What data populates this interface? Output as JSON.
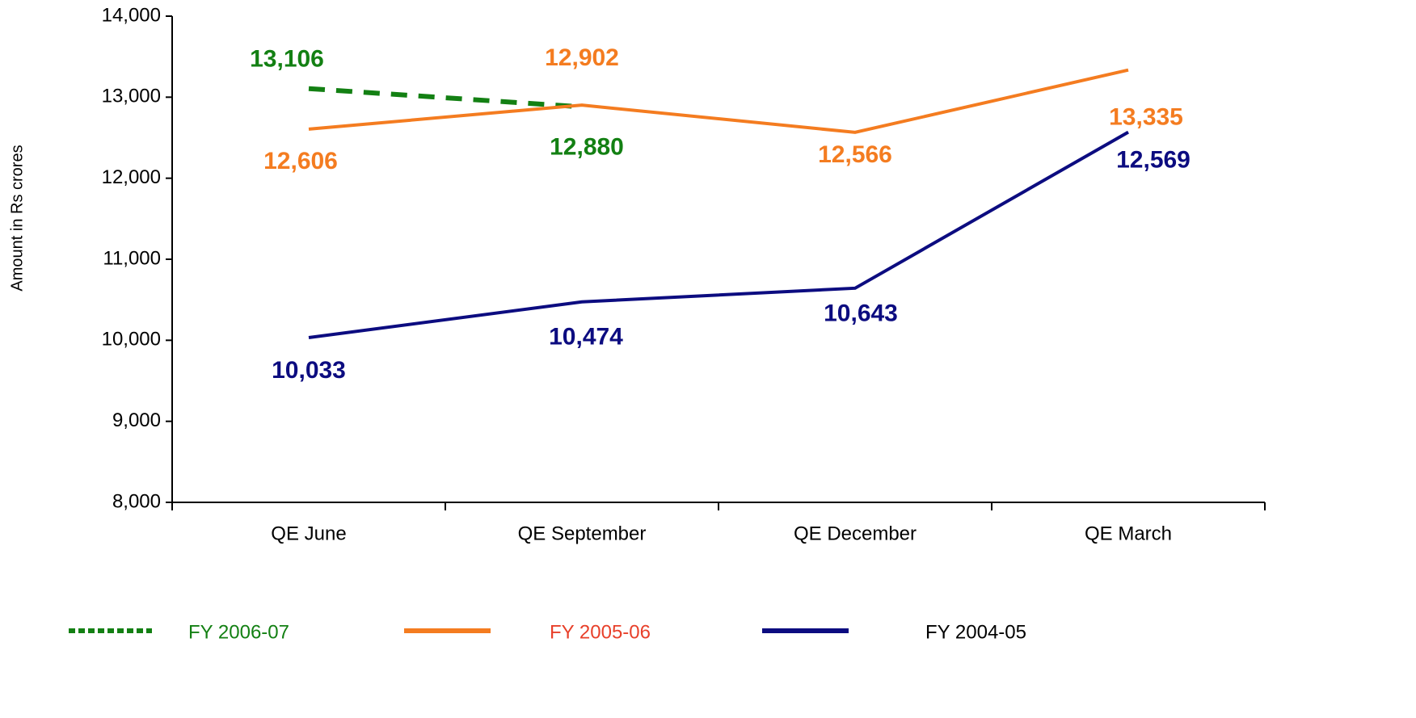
{
  "chart_data": {
    "type": "line",
    "ylabel": "Amount in Rs crores",
    "categories": [
      "QE June",
      "QE September",
      "QE December",
      "QE March"
    ],
    "series": [
      {
        "name": "FY 2006-07",
        "color": "#138013",
        "dashed": true,
        "values": [
          13106,
          12880,
          null,
          null
        ],
        "value_labels": [
          "13,106",
          "12,880",
          null,
          null
        ]
      },
      {
        "name": "FY 2005-06",
        "color": "#f47c20",
        "values": [
          12606,
          12902,
          12566,
          13335
        ],
        "value_labels": [
          "12,606",
          "12,902",
          "12,566",
          "13,335"
        ]
      },
      {
        "name": "FY 2004-05",
        "color": "#0c0c80",
        "values": [
          10033,
          10474,
          10643,
          12569
        ],
        "value_labels": [
          "10,033",
          "10,474",
          "10,643",
          "12,569"
        ]
      }
    ],
    "ylim": [
      8000,
      14000
    ],
    "yticks": [
      {
        "value": 8000,
        "label": "8,000"
      },
      {
        "value": 9000,
        "label": "9,000"
      },
      {
        "value": 10000,
        "label": "10,000"
      },
      {
        "value": 11000,
        "label": "11,000"
      },
      {
        "value": 12000,
        "label": "12,000"
      },
      {
        "value": 13000,
        "label": "13,000"
      },
      {
        "value": 14000,
        "label": "14,000"
      }
    ],
    "legend": "bottom"
  }
}
